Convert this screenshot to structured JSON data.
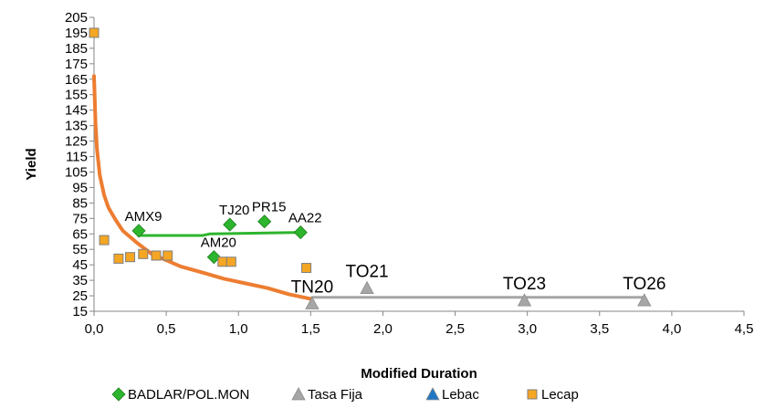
{
  "chart_data": {
    "type": "scatter",
    "xlabel": "Modified Duration",
    "ylabel": "Yield",
    "xlim": [
      0,
      4.5
    ],
    "ylim": [
      15,
      205
    ],
    "x_ticks": [
      "0,0",
      "0,5",
      "1,0",
      "1,5",
      "2,0",
      "2,5",
      "3,0",
      "3,5",
      "4,0",
      "4,5"
    ],
    "y_ticks": [
      "15",
      "25",
      "35",
      "45",
      "55",
      "65",
      "75",
      "85",
      "95",
      "105",
      "115",
      "125",
      "135",
      "145",
      "155",
      "165",
      "175",
      "185",
      "195",
      "205"
    ],
    "legend_position": "bottom",
    "series": [
      {
        "name": "BADLAR/POL.MON",
        "marker": "diamond",
        "color": "#2DB52D",
        "points": [
          {
            "x": 0.31,
            "y": 67,
            "label": "AMX9"
          },
          {
            "x": 0.83,
            "y": 50,
            "label": "AM20"
          },
          {
            "x": 0.94,
            "y": 71,
            "label": "TJ20"
          },
          {
            "x": 1.18,
            "y": 73,
            "label": "PR15"
          },
          {
            "x": 1.43,
            "y": 66,
            "label": "AA22"
          }
        ]
      },
      {
        "name": "Tasa Fija",
        "marker": "triangle",
        "color": "#A6A6A6",
        "points": [
          {
            "x": 1.51,
            "y": 20,
            "label": "TN20"
          },
          {
            "x": 1.89,
            "y": 30,
            "label": "TO21"
          },
          {
            "x": 2.98,
            "y": 22,
            "label": "TO23"
          },
          {
            "x": 3.81,
            "y": 22,
            "label": "TO26"
          }
        ]
      },
      {
        "name": "Lebac",
        "marker": "triangle",
        "color": "#1F77C4",
        "points": []
      },
      {
        "name": "Lecap",
        "marker": "square",
        "color": "#F5A623",
        "points": [
          {
            "x": 0.0,
            "y": 195
          },
          {
            "x": 0.07,
            "y": 61
          },
          {
            "x": 0.17,
            "y": 49
          },
          {
            "x": 0.25,
            "y": 50
          },
          {
            "x": 0.34,
            "y": 52
          },
          {
            "x": 0.43,
            "y": 51
          },
          {
            "x": 0.51,
            "y": 51
          },
          {
            "x": 0.89,
            "y": 47
          },
          {
            "x": 0.95,
            "y": 47
          },
          {
            "x": 1.47,
            "y": 43
          }
        ]
      }
    ],
    "trend_lines": [
      {
        "name": "BADLAR/POL.MON",
        "color": "#2DB52D",
        "points": [
          [
            0.31,
            64
          ],
          [
            0.75,
            64
          ],
          [
            0.8,
            65
          ],
          [
            1.43,
            66
          ]
        ]
      },
      {
        "name": "Tasa Fija",
        "color": "#A6A6A6",
        "points": [
          [
            1.51,
            24
          ],
          [
            3.81,
            24
          ]
        ]
      },
      {
        "name": "Lecap",
        "color": "#ED7D31",
        "curve": "log",
        "points": [
          [
            0.0,
            167
          ],
          [
            0.01,
            137
          ],
          [
            0.02,
            120
          ],
          [
            0.04,
            103
          ],
          [
            0.07,
            90
          ],
          [
            0.1,
            82
          ],
          [
            0.15,
            74
          ],
          [
            0.2,
            67
          ],
          [
            0.3,
            59
          ],
          [
            0.4,
            52
          ],
          [
            0.5,
            48
          ],
          [
            0.6,
            44
          ],
          [
            0.75,
            40
          ],
          [
            0.9,
            36
          ],
          [
            1.05,
            33
          ],
          [
            1.2,
            30
          ],
          [
            1.35,
            26
          ],
          [
            1.5,
            23
          ]
        ]
      }
    ]
  }
}
